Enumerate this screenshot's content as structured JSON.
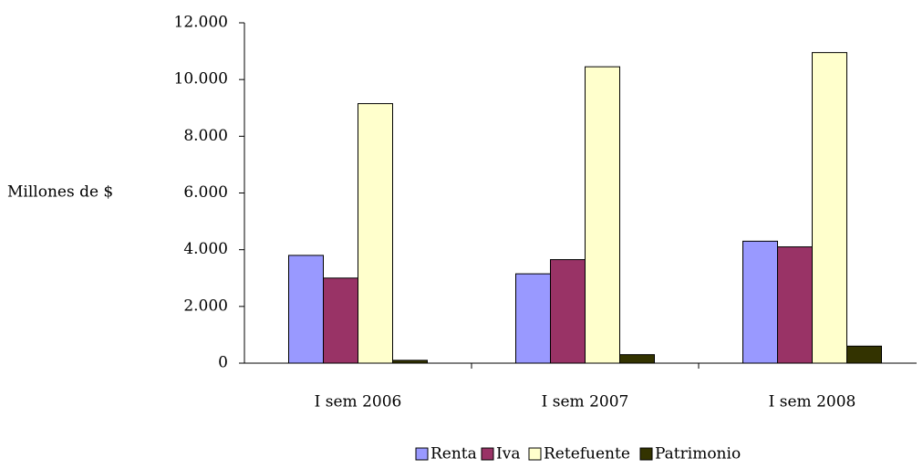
{
  "chart_data": {
    "type": "bar",
    "y_label": "Millones de $",
    "categories": [
      "I sem 2006",
      "I sem 2007",
      "I sem 2008"
    ],
    "series": [
      {
        "name": "Renta",
        "color": "#9999ff",
        "values": [
          3800,
          3150,
          4300
        ]
      },
      {
        "name": "Iva",
        "color": "#993366",
        "values": [
          3000,
          3650,
          4100
        ]
      },
      {
        "name": "Retefuente",
        "color": "#ffffcc",
        "values": [
          9150,
          10450,
          10950
        ]
      },
      {
        "name": "Patrimonio",
        "color": "#333300",
        "values": [
          100,
          300,
          600
        ]
      }
    ],
    "ylim": [
      0,
      12000
    ],
    "yticks": [
      0,
      {
        "value": 2000,
        "label": "2.000"
      },
      {
        "value": 4000,
        "label": "4.000"
      },
      {
        "value": 6000,
        "label": "6.000"
      },
      {
        "value": 8000,
        "label": "8.000"
      },
      {
        "value": 10000,
        "label": "10.000"
      },
      {
        "value": 12000,
        "label": "12.000"
      }
    ],
    "legend": "bottom",
    "grid": false
  }
}
